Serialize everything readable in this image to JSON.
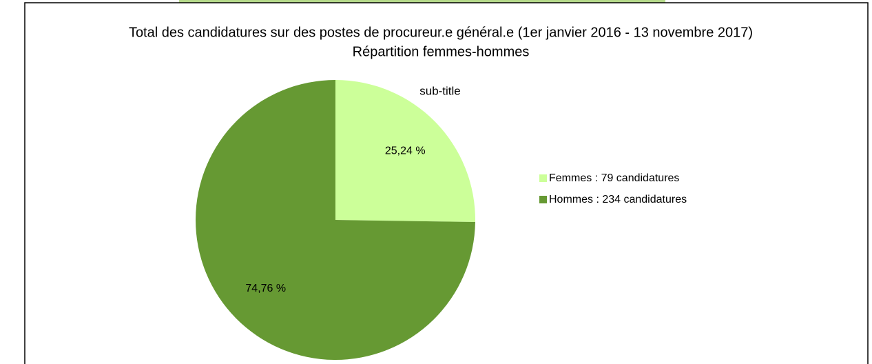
{
  "chart_data": {
    "type": "pie",
    "title": "Total des candidatures sur des postes de procureur.e général.e  (1er janvier 2016 - 13 novembre 2017)",
    "subtitle": "Répartition femmes-hommes",
    "annotations": [
      "sub-title"
    ],
    "categories": [
      "Femmes : 79 candidatures",
      "Hommes : 234 candidatures"
    ],
    "values": [
      25.24,
      74.76
    ],
    "value_labels": [
      "25,24 %",
      "74,76 %"
    ],
    "colors": [
      "#ccff99",
      "#669933"
    ],
    "legend": "right"
  }
}
